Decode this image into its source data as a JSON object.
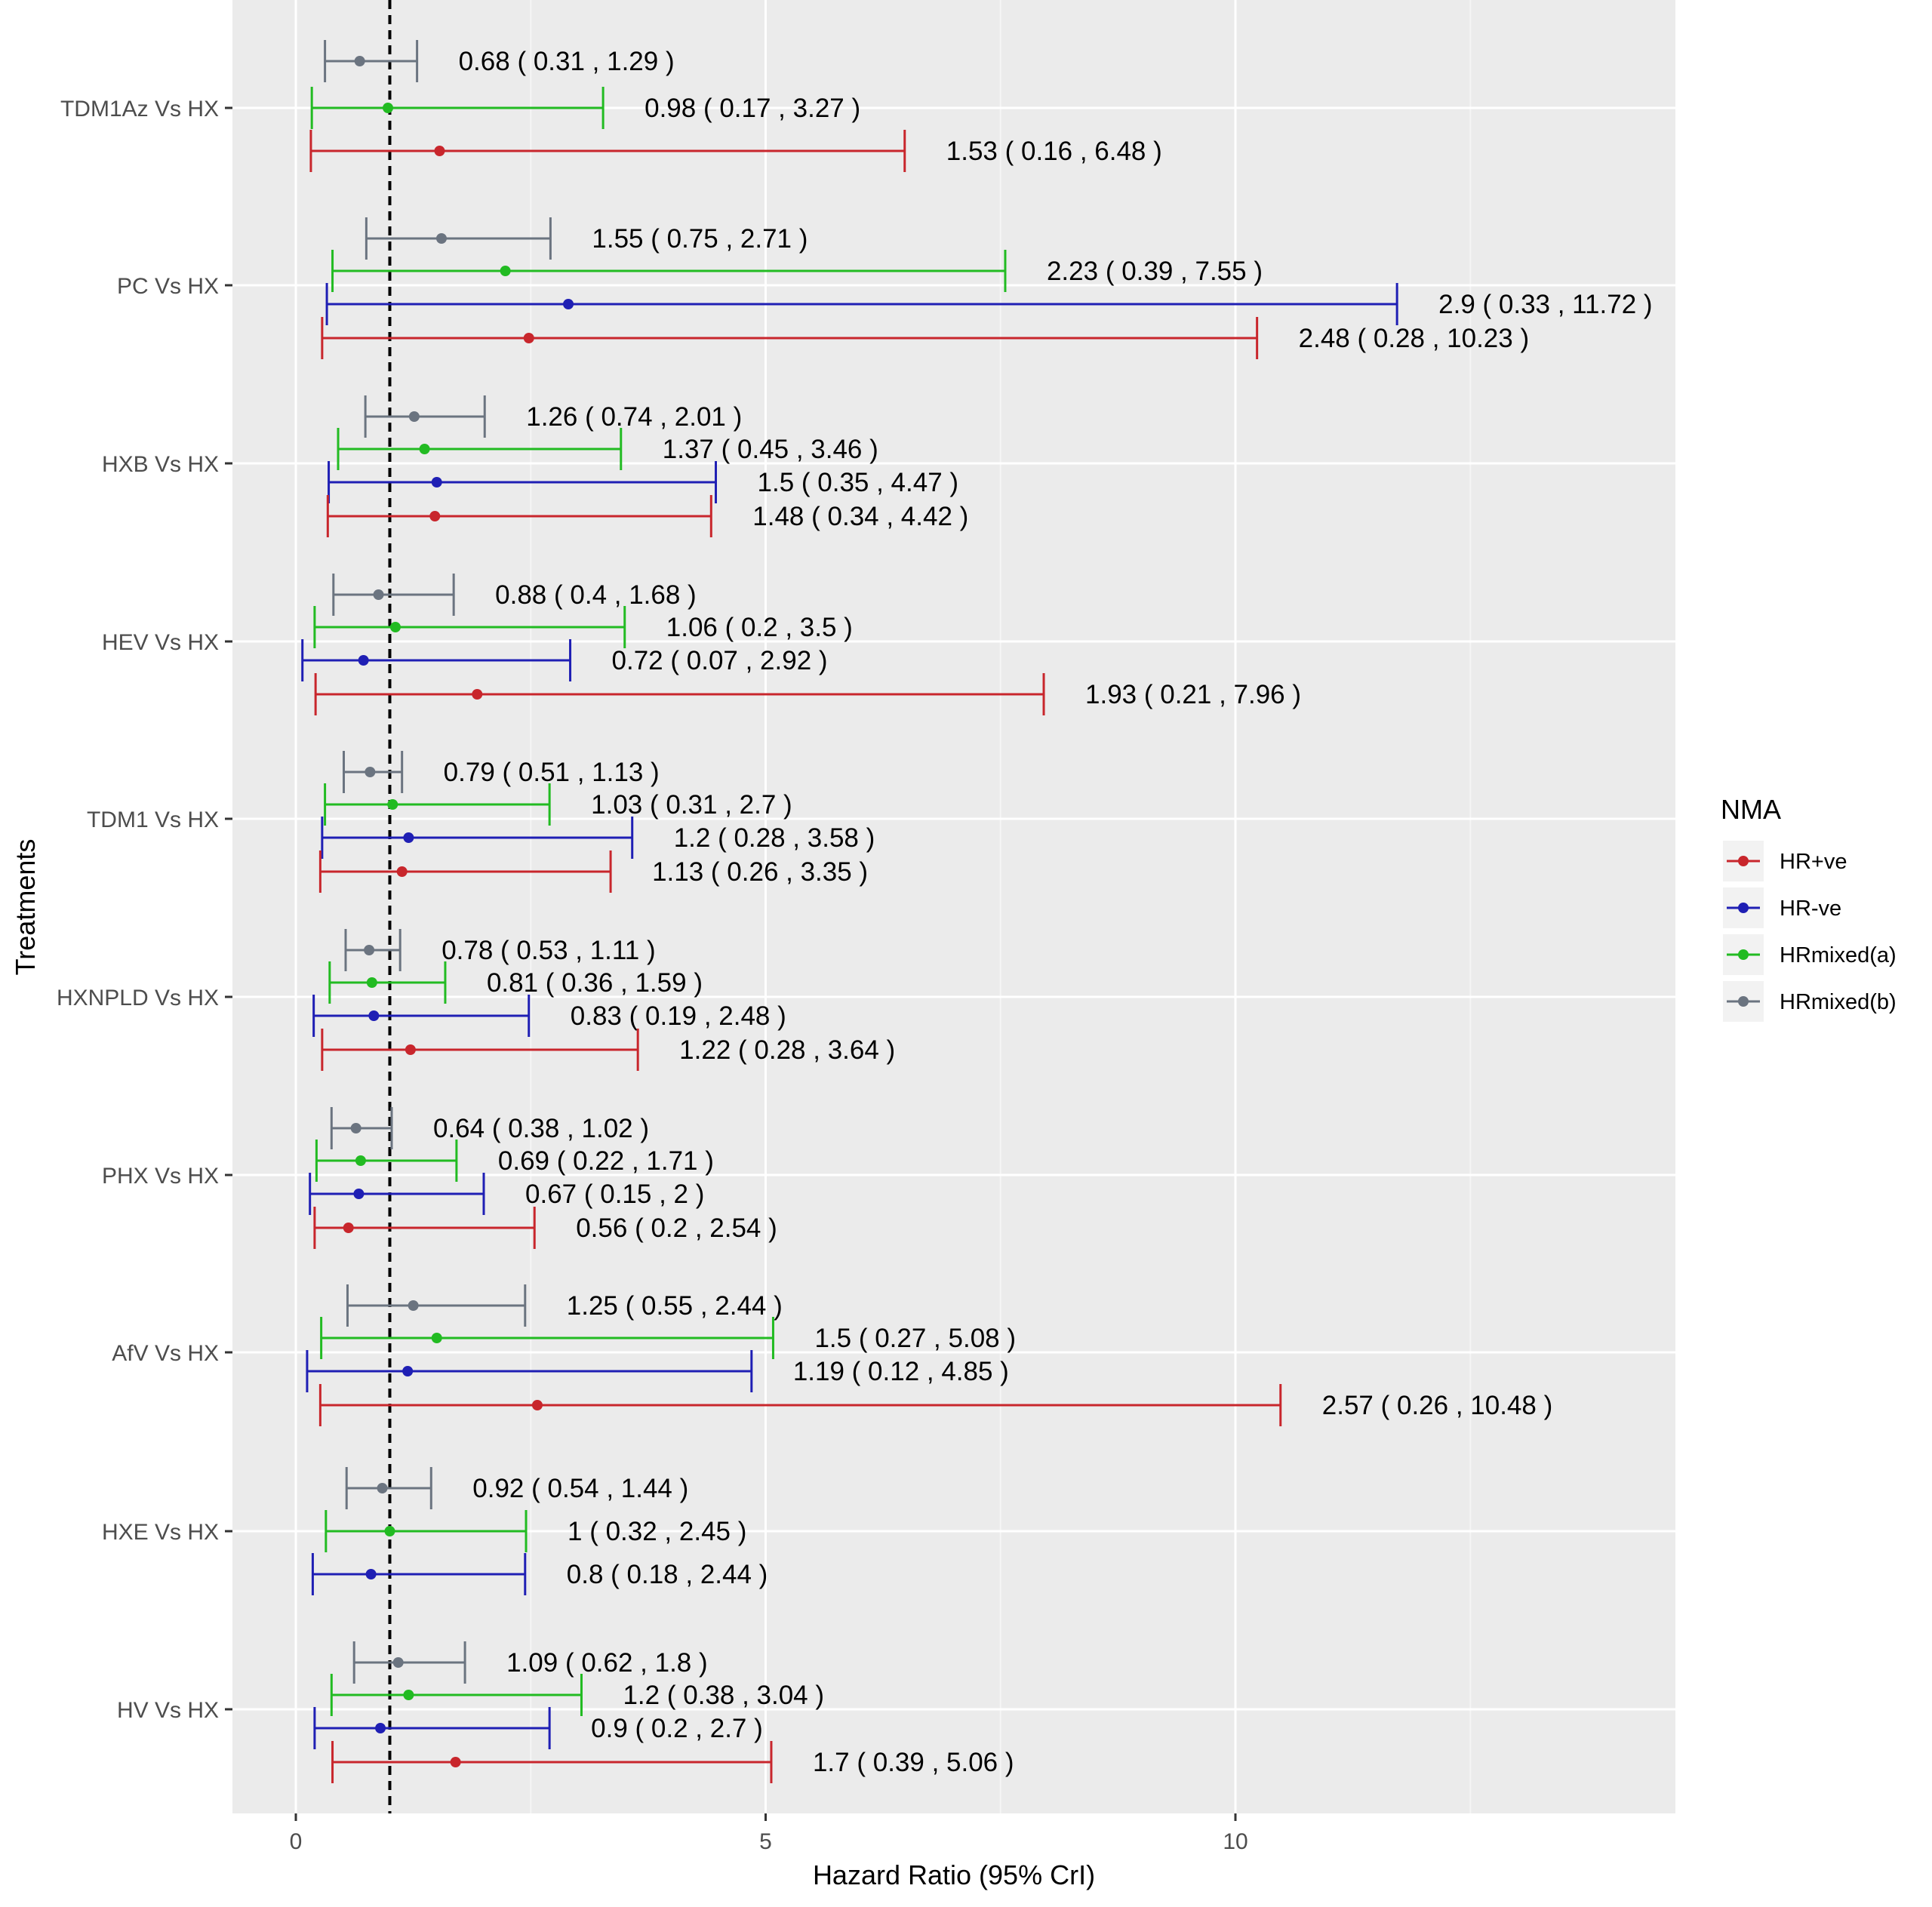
{
  "chart_data": {
    "type": "forest",
    "xlabel": "Hazard Ratio (95% CrI)",
    "ylabel": "Treatments",
    "xlim": [
      -0.7,
      14.7
    ],
    "xticks": [
      0,
      5,
      10
    ],
    "xtick_labels": [
      "0",
      "5",
      "10"
    ],
    "grid": true,
    "reference_line": 1,
    "legend": {
      "title": "NMA",
      "position": "right",
      "entries": [
        {
          "key": "HR+ve",
          "label": "HR+ve",
          "color": "#c8262c"
        },
        {
          "key": "HR-ve",
          "label": "HR-ve",
          "color": "#1f1fb4"
        },
        {
          "key": "HRmixed(a)",
          "label": "HRmixed(a)",
          "color": "#22bb22"
        },
        {
          "key": "HRmixed(b)",
          "label": "HRmixed(b)",
          "color": "#6b7480"
        }
      ]
    },
    "groups": [
      {
        "treatment": "TDM1Az Vs HX",
        "estimates": [
          {
            "series": "HRmixed(b)",
            "hr": 0.68,
            "lo": 0.31,
            "hi": 1.29,
            "label": "0.68 ( 0.31 , 1.29 )"
          },
          {
            "series": "HRmixed(a)",
            "hr": 0.98,
            "lo": 0.17,
            "hi": 3.27,
            "label": "0.98 ( 0.17 , 3.27 )"
          },
          {
            "series": "HR+ve",
            "hr": 1.53,
            "lo": 0.16,
            "hi": 6.48,
            "label": "1.53 ( 0.16 , 6.48 )"
          }
        ]
      },
      {
        "treatment": "PC Vs HX",
        "estimates": [
          {
            "series": "HRmixed(b)",
            "hr": 1.55,
            "lo": 0.75,
            "hi": 2.71,
            "label": "1.55 ( 0.75 , 2.71 )"
          },
          {
            "series": "HRmixed(a)",
            "hr": 2.23,
            "lo": 0.39,
            "hi": 7.55,
            "label": "2.23 ( 0.39 , 7.55 )"
          },
          {
            "series": "HR-ve",
            "hr": 2.9,
            "lo": 0.33,
            "hi": 11.72,
            "label": "2.9 ( 0.33 , 11.72 )"
          },
          {
            "series": "HR+ve",
            "hr": 2.48,
            "lo": 0.28,
            "hi": 10.23,
            "label": "2.48 ( 0.28 , 10.23 )"
          }
        ]
      },
      {
        "treatment": "HXB Vs HX",
        "estimates": [
          {
            "series": "HRmixed(b)",
            "hr": 1.26,
            "lo": 0.74,
            "hi": 2.01,
            "label": "1.26 ( 0.74 , 2.01 )"
          },
          {
            "series": "HRmixed(a)",
            "hr": 1.37,
            "lo": 0.45,
            "hi": 3.46,
            "label": "1.37 ( 0.45 , 3.46 )"
          },
          {
            "series": "HR-ve",
            "hr": 1.5,
            "lo": 0.35,
            "hi": 4.47,
            "label": "1.5 ( 0.35 , 4.47 )"
          },
          {
            "series": "HR+ve",
            "hr": 1.48,
            "lo": 0.34,
            "hi": 4.42,
            "label": "1.48 ( 0.34 , 4.42 )"
          }
        ]
      },
      {
        "treatment": "HEV Vs HX",
        "estimates": [
          {
            "series": "HRmixed(b)",
            "hr": 0.88,
            "lo": 0.4,
            "hi": 1.68,
            "label": "0.88 ( 0.4 , 1.68 )"
          },
          {
            "series": "HRmixed(a)",
            "hr": 1.06,
            "lo": 0.2,
            "hi": 3.5,
            "label": "1.06 ( 0.2 , 3.5 )"
          },
          {
            "series": "HR-ve",
            "hr": 0.72,
            "lo": 0.07,
            "hi": 2.92,
            "label": "0.72 ( 0.07 , 2.92 )"
          },
          {
            "series": "HR+ve",
            "hr": 1.93,
            "lo": 0.21,
            "hi": 7.96,
            "label": "1.93 ( 0.21 , 7.96 )"
          }
        ]
      },
      {
        "treatment": "TDM1 Vs HX",
        "estimates": [
          {
            "series": "HRmixed(b)",
            "hr": 0.79,
            "lo": 0.51,
            "hi": 1.13,
            "label": "0.79 ( 0.51 , 1.13 )"
          },
          {
            "series": "HRmixed(a)",
            "hr": 1.03,
            "lo": 0.31,
            "hi": 2.7,
            "label": "1.03 ( 0.31 , 2.7 )"
          },
          {
            "series": "HR-ve",
            "hr": 1.2,
            "lo": 0.28,
            "hi": 3.58,
            "label": "1.2 ( 0.28 , 3.58 )"
          },
          {
            "series": "HR+ve",
            "hr": 1.13,
            "lo": 0.26,
            "hi": 3.35,
            "label": "1.13 ( 0.26 , 3.35 )"
          }
        ]
      },
      {
        "treatment": "HXNPLD Vs HX",
        "estimates": [
          {
            "series": "HRmixed(b)",
            "hr": 0.78,
            "lo": 0.53,
            "hi": 1.11,
            "label": "0.78 ( 0.53 , 1.11 )"
          },
          {
            "series": "HRmixed(a)",
            "hr": 0.81,
            "lo": 0.36,
            "hi": 1.59,
            "label": "0.81 ( 0.36 , 1.59 )"
          },
          {
            "series": "HR-ve",
            "hr": 0.83,
            "lo": 0.19,
            "hi": 2.48,
            "label": "0.83 ( 0.19 , 2.48 )"
          },
          {
            "series": "HR+ve",
            "hr": 1.22,
            "lo": 0.28,
            "hi": 3.64,
            "label": "1.22 ( 0.28 , 3.64 )"
          }
        ]
      },
      {
        "treatment": "PHX Vs HX",
        "estimates": [
          {
            "series": "HRmixed(b)",
            "hr": 0.64,
            "lo": 0.38,
            "hi": 1.02,
            "label": "0.64 ( 0.38 , 1.02 )"
          },
          {
            "series": "HRmixed(a)",
            "hr": 0.69,
            "lo": 0.22,
            "hi": 1.71,
            "label": "0.69 ( 0.22 , 1.71 )"
          },
          {
            "series": "HR-ve",
            "hr": 0.67,
            "lo": 0.15,
            "hi": 2,
            "label": "0.67 ( 0.15 , 2 )"
          },
          {
            "series": "HR+ve",
            "hr": 0.56,
            "lo": 0.2,
            "hi": 2.54,
            "label": "0.56 ( 0.2 , 2.54 )"
          }
        ]
      },
      {
        "treatment": "AfV Vs HX",
        "estimates": [
          {
            "series": "HRmixed(b)",
            "hr": 1.25,
            "lo": 0.55,
            "hi": 2.44,
            "label": "1.25 ( 0.55 , 2.44 )"
          },
          {
            "series": "HRmixed(a)",
            "hr": 1.5,
            "lo": 0.27,
            "hi": 5.08,
            "label": "1.5 ( 0.27 , 5.08 )"
          },
          {
            "series": "HR-ve",
            "hr": 1.19,
            "lo": 0.12,
            "hi": 4.85,
            "label": "1.19 ( 0.12 , 4.85 )"
          },
          {
            "series": "HR+ve",
            "hr": 2.57,
            "lo": 0.26,
            "hi": 10.48,
            "label": "2.57 ( 0.26 , 10.48 )"
          }
        ]
      },
      {
        "treatment": "HXE Vs HX",
        "estimates": [
          {
            "series": "HRmixed(b)",
            "hr": 0.92,
            "lo": 0.54,
            "hi": 1.44,
            "label": "0.92 ( 0.54 , 1.44 )"
          },
          {
            "series": "HRmixed(a)",
            "hr": 1,
            "lo": 0.32,
            "hi": 2.45,
            "label": "1 ( 0.32 , 2.45 )"
          },
          {
            "series": "HR-ve",
            "hr": 0.8,
            "lo": 0.18,
            "hi": 2.44,
            "label": "0.8 ( 0.18 , 2.44 )"
          }
        ]
      },
      {
        "treatment": "HV Vs HX",
        "estimates": [
          {
            "series": "HRmixed(b)",
            "hr": 1.09,
            "lo": 0.62,
            "hi": 1.8,
            "label": "1.09 ( 0.62 , 1.8 )"
          },
          {
            "series": "HRmixed(a)",
            "hr": 1.2,
            "lo": 0.38,
            "hi": 3.04,
            "label": "1.2 ( 0.38 , 3.04 )"
          },
          {
            "series": "HR-ve",
            "hr": 0.9,
            "lo": 0.2,
            "hi": 2.7,
            "label": "0.9 ( 0.2 , 2.7 )"
          },
          {
            "series": "HR+ve",
            "hr": 1.7,
            "lo": 0.39,
            "hi": 5.06,
            "label": "1.7 ( 0.39 , 5.06 )"
          }
        ]
      }
    ]
  }
}
